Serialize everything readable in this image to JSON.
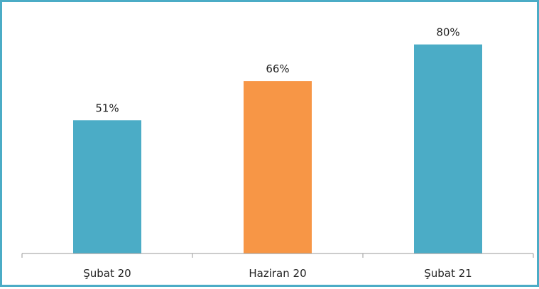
{
  "chart_data": {
    "type": "bar",
    "categories": [
      "Şubat 20",
      "Haziran 20",
      "Şubat 21"
    ],
    "values": [
      51,
      66,
      80
    ],
    "data_labels": [
      "51%",
      "66%",
      "80%"
    ],
    "unit": "%",
    "title": "",
    "xlabel": "",
    "ylabel": "",
    "ylim": [
      0,
      100
    ],
    "grid": false,
    "legend": "none",
    "bar_colors": [
      "#4bacc6",
      "#f79646",
      "#4bacc6"
    ],
    "frame_color": "#4bacc6",
    "axis_color": "#999999"
  }
}
